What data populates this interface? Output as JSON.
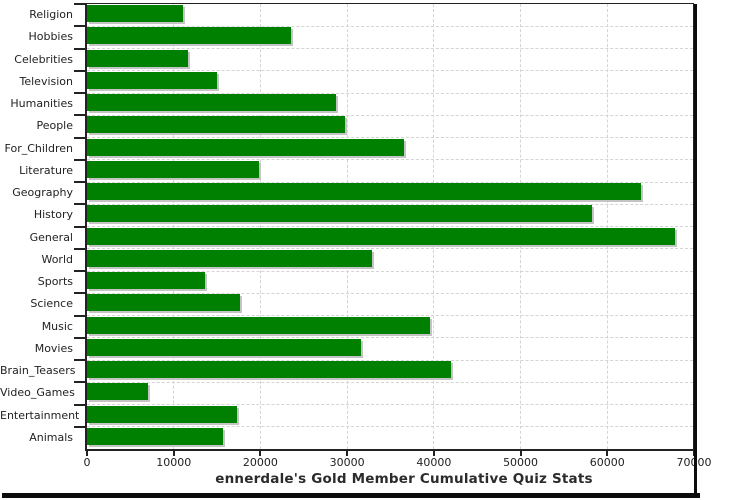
{
  "chart_data": {
    "type": "bar",
    "orientation": "horizontal",
    "title": "ennerdale's Gold Member Cumulative Quiz Stats",
    "categories": [
      "Religion",
      "Hobbies",
      "Celebrities",
      "Television",
      "Humanities",
      "People",
      "For_Children",
      "Literature",
      "Geography",
      "History",
      "General",
      "World",
      "Sports",
      "Science",
      "Music",
      "Movies",
      "Brain_Teasers",
      "Video_Games",
      "Entertainment",
      "Animals"
    ],
    "values": [
      11100,
      23500,
      11700,
      15000,
      28700,
      29700,
      36600,
      19800,
      63900,
      58200,
      67800,
      32900,
      13600,
      17700,
      39500,
      31600,
      42000,
      7000,
      17300,
      15700
    ],
    "xlabel": "",
    "ylabel": "",
    "xlim": [
      0,
      70000
    ],
    "xticks": [
      0,
      10000,
      20000,
      30000,
      40000,
      50000,
      60000,
      70000
    ],
    "xtick_labels": [
      "0",
      "10000",
      "20000",
      "30000",
      "40000",
      "50000",
      "60000",
      "70000"
    ],
    "grid": "dashed-both-axes",
    "legend": "none",
    "colors": {
      "bar": "#008000",
      "bar_shadow": "#c4c4c4",
      "grid": "#d4d4d4",
      "axis": "#222222",
      "text": "#222222",
      "title_text": "#2b2b2b",
      "frame_shadow": "#0c0c0c",
      "background": "#ffffff"
    }
  }
}
